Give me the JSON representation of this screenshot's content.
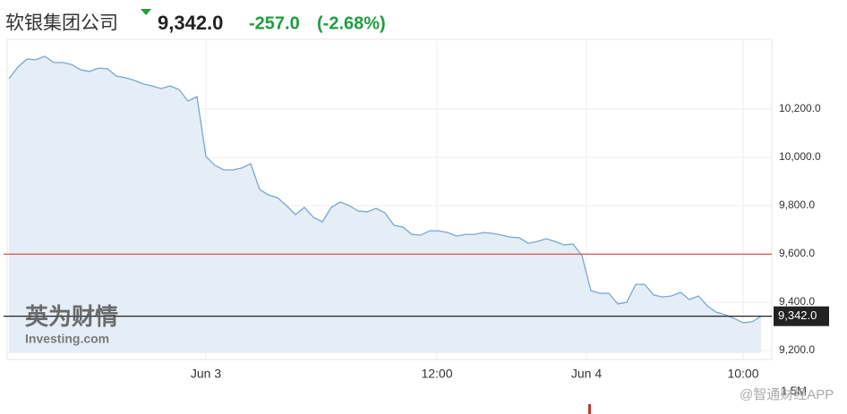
{
  "header": {
    "name": "软银集团公司",
    "price": "9,342.0",
    "change": "-257.0",
    "change_pct": "(-2.68%)"
  },
  "chart_data": {
    "type": "area",
    "values": [
      10326,
      10374,
      10407,
      10404,
      10419,
      10393,
      10393,
      10385,
      10363,
      10356,
      10370,
      10367,
      10337,
      10330,
      10319,
      10304,
      10296,
      10285,
      10296,
      10281,
      10233,
      10252,
      10004,
      9967,
      9948,
      9948,
      9956,
      9974,
      9867,
      9844,
      9833,
      9800,
      9763,
      9793,
      9752,
      9733,
      9793,
      9815,
      9800,
      9778,
      9774,
      9789,
      9770,
      9719,
      9711,
      9681,
      9678,
      9696,
      9696,
      9689,
      9674,
      9681,
      9681,
      9689,
      9685,
      9678,
      9670,
      9667,
      9644,
      9652,
      9663,
      9652,
      9637,
      9641,
      9593,
      9448,
      9437,
      9437,
      9393,
      9400,
      9474,
      9474,
      9430,
      9422,
      9426,
      9441,
      9411,
      9426,
      9385,
      9359,
      9348,
      9333,
      9315,
      9319,
      9342
    ],
    "color": "#7aa6cf",
    "fill": "#e5edf6",
    "ylim": [
      9190,
      10480
    ],
    "yticks": [
      {
        "value": 9200,
        "label": "9,200.0"
      },
      {
        "value": 9400,
        "label": "9,400.0"
      },
      {
        "value": 9600,
        "label": "9,600.0"
      },
      {
        "value": 9800,
        "label": "9,800.0"
      },
      {
        "value": 10000,
        "label": "10,000.0"
      },
      {
        "value": 10200,
        "label": "10,200.0"
      }
    ],
    "xlim": [
      0,
      84
    ],
    "xticks": [
      {
        "value": 22,
        "label": "Jun 3"
      },
      {
        "value": 47.8,
        "label": "12:00"
      },
      {
        "value": 64.5,
        "label": "Jun 4"
      },
      {
        "value": 82,
        "label": "10:00"
      }
    ],
    "reference_line": 9599,
    "reference_color": "#d9534f",
    "last_value": {
      "value": 9342,
      "label": "9,342.0"
    },
    "volume_label": "1.5M"
  },
  "watermarks": {
    "logo_cn": "英为财情",
    "logo_en": "Investing.com",
    "source": "@智通财经APP"
  }
}
